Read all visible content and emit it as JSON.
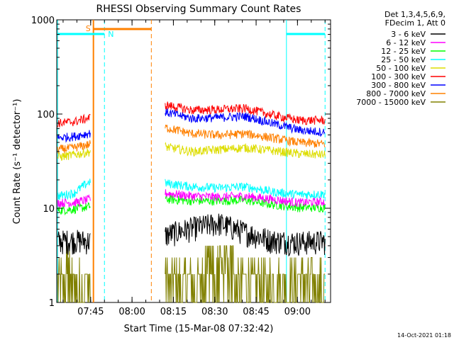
{
  "chart_data": {
    "type": "line",
    "title": "RHESSI Observing Summary Count Rates",
    "xlabel": "Start Time (15-Mar-08 07:32:42)",
    "ylabel": "Count Rate (s⁻¹ detector⁻¹)",
    "x_range": [
      "07:32:42",
      "09:12:00"
    ],
    "y_scale": "log",
    "ylim": [
      1,
      1000
    ],
    "x_ticks": [
      "07:45",
      "08:00",
      "08:15",
      "08:30",
      "08:45",
      "09:00"
    ],
    "y_ticks": [
      "1",
      "10",
      "100",
      "1000"
    ],
    "legend_title": [
      "Det 1,3,4,5,6,9,",
      "FDecim 1, Att 0"
    ],
    "legend_position": "right",
    "timestamp": "14-Oct-2021 01:18",
    "flags": [
      {
        "label": "S",
        "color": "#ff8000"
      },
      {
        "label": "N",
        "color": "#00ffff"
      }
    ],
    "series": [
      {
        "name": "3 - 6 keV",
        "color": "#000000",
        "segments": [
          {
            "start": "07:33",
            "end": "07:45",
            "values": [
              4.5,
              4.6,
              4.5
            ]
          },
          {
            "start": "08:12",
            "end": "09:10",
            "values": [
              5.2,
              6.2,
              7.0,
              5.6,
              4.6,
              4.4,
              4.5
            ]
          }
        ]
      },
      {
        "name": "6 - 12 keV",
        "color": "#ff00ff",
        "segments": [
          {
            "start": "07:33",
            "end": "07:45",
            "values": [
              11.5,
              11.5,
              12.5
            ]
          },
          {
            "start": "08:12",
            "end": "09:10",
            "values": [
              14.5,
              13.5,
              13.2,
              13.5,
              12.5,
              11.5,
              11.8
            ]
          }
        ]
      },
      {
        "name": "12 - 25 keV",
        "color": "#00ff00",
        "segments": [
          {
            "start": "07:33",
            "end": "07:45",
            "values": [
              9.5,
              9.8,
              10.5
            ]
          },
          {
            "start": "08:12",
            "end": "09:10",
            "values": [
              12.5,
              12.0,
              12.0,
              12.2,
              11.0,
              10.2,
              10.2
            ]
          }
        ]
      },
      {
        "name": "25 - 50 keV",
        "color": "#00ffff",
        "segments": [
          {
            "start": "07:33",
            "end": "07:45",
            "values": [
              13.5,
              14.5,
              19.5
            ]
          },
          {
            "start": "08:12",
            "end": "09:10",
            "values": [
              18.5,
              17.0,
              16.5,
              17.0,
              15.0,
              14.0,
              14.2
            ]
          }
        ]
      },
      {
        "name": "50 - 100 keV",
        "color": "#dddd00",
        "segments": [
          {
            "start": "07:33",
            "end": "07:45",
            "values": [
              35,
              37,
              40
            ]
          },
          {
            "start": "08:12",
            "end": "09:10",
            "values": [
              45,
              40,
              42,
              44,
              41,
              38,
              37
            ]
          }
        ]
      },
      {
        "name": "100 - 300 keV",
        "color": "#ff0000",
        "segments": [
          {
            "start": "07:33",
            "end": "07:45",
            "values": [
              80,
              83,
              92
            ]
          },
          {
            "start": "08:12",
            "end": "09:10",
            "values": [
              125,
              110,
              112,
              115,
              98,
              86,
              86
            ]
          }
        ]
      },
      {
        "name": "300 - 800 keV",
        "color": "#0000ff",
        "segments": [
          {
            "start": "07:33",
            "end": "07:45",
            "values": [
              56,
              58,
              63
            ]
          },
          {
            "start": "08:12",
            "end": "09:10",
            "values": [
              105,
              90,
              92,
              95,
              80,
              68,
              64
            ]
          }
        ]
      },
      {
        "name": "800 - 7000 keV",
        "color": "#ff8000",
        "segments": [
          {
            "start": "07:33",
            "end": "07:45",
            "values": [
              42,
              44,
              48
            ]
          },
          {
            "start": "08:12",
            "end": "09:10",
            "values": [
              72,
              62,
              60,
              62,
              56,
              50,
              48
            ]
          }
        ]
      },
      {
        "name": "7000 - 15000 keV",
        "color": "#808000",
        "segments": [
          {
            "start": "07:33",
            "end": "07:45",
            "values": [
              1.8,
              1.8,
              2.2
            ]
          },
          {
            "start": "08:12",
            "end": "09:10",
            "values": [
              1.7,
              1.6,
              2.5,
              2.2,
              1.8,
              1.8,
              1.7
            ]
          }
        ]
      }
    ]
  }
}
